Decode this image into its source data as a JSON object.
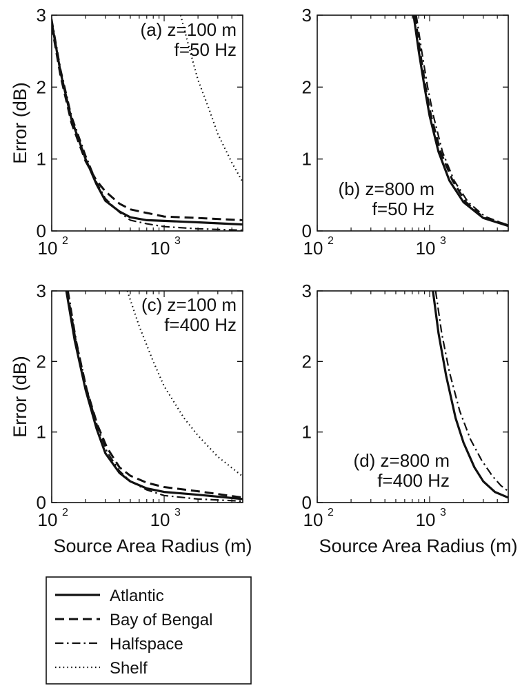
{
  "chart_data": [
    {
      "type": "line",
      "panel_label": "(a)",
      "annotation": [
        "(a) z=100 m",
        "f=50 Hz"
      ],
      "xlabel": "",
      "ylabel": "Error (dB)",
      "xscale": "log",
      "xlim": [
        100,
        5000
      ],
      "ylim": [
        0,
        3
      ],
      "xticks": [
        {
          "value": 100,
          "base": "10",
          "exp": "2"
        },
        {
          "value": 1000,
          "base": "10",
          "exp": "3"
        }
      ],
      "yticks": [
        "0",
        "1",
        "2",
        "3"
      ],
      "series": [
        {
          "name": "Atlantic",
          "style": "solid",
          "points": [
            [
              100,
              2.9
            ],
            [
              120,
              2.2
            ],
            [
              150,
              1.55
            ],
            [
              200,
              1.0
            ],
            [
              250,
              0.65
            ],
            [
              300,
              0.42
            ],
            [
              400,
              0.27
            ],
            [
              500,
              0.19
            ],
            [
              700,
              0.15
            ],
            [
              1000,
              0.14
            ],
            [
              2000,
              0.12
            ],
            [
              5000,
              0.09
            ]
          ]
        },
        {
          "name": "Bay of Bengal",
          "style": "dashed",
          "points": [
            [
              100,
              2.85
            ],
            [
              120,
              2.15
            ],
            [
              150,
              1.5
            ],
            [
              200,
              0.97
            ],
            [
              250,
              0.7
            ],
            [
              300,
              0.55
            ],
            [
              400,
              0.38
            ],
            [
              500,
              0.3
            ],
            [
              700,
              0.25
            ],
            [
              1000,
              0.2
            ],
            [
              2000,
              0.18
            ],
            [
              5000,
              0.15
            ]
          ]
        },
        {
          "name": "Halfspace",
          "style": "dashdot",
          "points": [
            [
              100,
              2.95
            ],
            [
              120,
              2.25
            ],
            [
              150,
              1.6
            ],
            [
              200,
              1.05
            ],
            [
              250,
              0.68
            ],
            [
              300,
              0.45
            ],
            [
              400,
              0.26
            ],
            [
              500,
              0.15
            ],
            [
              700,
              0.1
            ],
            [
              1000,
              0.06
            ],
            [
              2000,
              0.03
            ],
            [
              5000,
              0.01
            ]
          ]
        },
        {
          "name": "Shelf",
          "style": "dotted",
          "points": [
            [
              1400,
              3.0
            ],
            [
              1700,
              2.5
            ],
            [
              2000,
              2.1
            ],
            [
              2500,
              1.7
            ],
            [
              3000,
              1.35
            ],
            [
              4000,
              0.95
            ],
            [
              5000,
              0.68
            ]
          ]
        }
      ]
    },
    {
      "type": "line",
      "panel_label": "(b)",
      "annotation": [
        "(b) z=800 m",
        "f=50 Hz"
      ],
      "xlabel": "",
      "ylabel": "",
      "xscale": "log",
      "xlim": [
        100,
        5000
      ],
      "ylim": [
        0,
        3
      ],
      "xticks": [
        {
          "value": 100,
          "base": "10",
          "exp": "2"
        },
        {
          "value": 1000,
          "base": "10",
          "exp": "3"
        }
      ],
      "yticks": [
        "0",
        "1",
        "2",
        "3"
      ],
      "series": [
        {
          "name": "Atlantic",
          "style": "solid",
          "points": [
            [
              720,
              3.0
            ],
            [
              800,
              2.5
            ],
            [
              900,
              2.0
            ],
            [
              1000,
              1.6
            ],
            [
              1200,
              1.1
            ],
            [
              1500,
              0.7
            ],
            [
              2000,
              0.4
            ],
            [
              3000,
              0.18
            ],
            [
              5000,
              0.07
            ]
          ]
        },
        {
          "name": "Bay of Bengal",
          "style": "dashed",
          "points": [
            [
              740,
              3.0
            ],
            [
              820,
              2.5
            ],
            [
              920,
              2.0
            ],
            [
              1030,
              1.6
            ],
            [
              1250,
              1.1
            ],
            [
              1600,
              0.7
            ],
            [
              2100,
              0.4
            ],
            [
              3000,
              0.19
            ],
            [
              5000,
              0.08
            ]
          ]
        },
        {
          "name": "Halfspace",
          "style": "dashdot",
          "points": [
            [
              760,
              3.0
            ],
            [
              850,
              2.5
            ],
            [
              960,
              2.0
            ],
            [
              1080,
              1.6
            ],
            [
              1300,
              1.1
            ],
            [
              1650,
              0.7
            ],
            [
              2200,
              0.4
            ],
            [
              3100,
              0.2
            ],
            [
              5000,
              0.08
            ]
          ]
        }
      ]
    },
    {
      "type": "line",
      "panel_label": "(c)",
      "annotation": [
        "(c) z=100 m",
        "f=400 Hz"
      ],
      "xlabel": "Source Area Radius (m)",
      "ylabel": "Error (dB)",
      "xscale": "log",
      "xlim": [
        100,
        5000
      ],
      "ylim": [
        0,
        3
      ],
      "xticks": [
        {
          "value": 100,
          "base": "10",
          "exp": "2"
        },
        {
          "value": 1000,
          "base": "10",
          "exp": "3"
        }
      ],
      "yticks": [
        "0",
        "1",
        "2",
        "3"
      ],
      "series": [
        {
          "name": "Atlantic",
          "style": "solid",
          "points": [
            [
              135,
              3.0
            ],
            [
              160,
              2.3
            ],
            [
              200,
              1.6
            ],
            [
              250,
              1.05
            ],
            [
              300,
              0.7
            ],
            [
              400,
              0.42
            ],
            [
              500,
              0.3
            ],
            [
              700,
              0.2
            ],
            [
              1000,
              0.15
            ],
            [
              2000,
              0.11
            ],
            [
              5000,
              0.05
            ]
          ]
        },
        {
          "name": "Bay of Bengal",
          "style": "dashed",
          "points": [
            [
              137,
              3.0
            ],
            [
              163,
              2.3
            ],
            [
              205,
              1.6
            ],
            [
              255,
              1.1
            ],
            [
              310,
              0.78
            ],
            [
              400,
              0.5
            ],
            [
              500,
              0.38
            ],
            [
              700,
              0.28
            ],
            [
              1000,
              0.22
            ],
            [
              2000,
              0.16
            ],
            [
              5000,
              0.07
            ]
          ]
        },
        {
          "name": "Halfspace",
          "style": "dashdot",
          "points": [
            [
              140,
              3.0
            ],
            [
              165,
              2.3
            ],
            [
              205,
              1.6
            ],
            [
              255,
              1.08
            ],
            [
              310,
              0.72
            ],
            [
              400,
              0.45
            ],
            [
              500,
              0.3
            ],
            [
              700,
              0.18
            ],
            [
              1000,
              0.1
            ],
            [
              2000,
              0.05
            ],
            [
              5000,
              0.02
            ]
          ]
        },
        {
          "name": "Shelf",
          "style": "dotted",
          "points": [
            [
              470,
              3.0
            ],
            [
              600,
              2.5
            ],
            [
              800,
              2.0
            ],
            [
              1000,
              1.65
            ],
            [
              1500,
              1.2
            ],
            [
              2000,
              0.95
            ],
            [
              3000,
              0.65
            ],
            [
              5000,
              0.37
            ]
          ]
        }
      ]
    },
    {
      "type": "line",
      "panel_label": "(d)",
      "annotation": [
        "(d) z=800 m",
        "f=400 Hz"
      ],
      "xlabel": "Source Area Radius (m)",
      "ylabel": "",
      "xscale": "log",
      "xlim": [
        100,
        5000
      ],
      "ylim": [
        0,
        3
      ],
      "xticks": [
        {
          "value": 100,
          "base": "10",
          "exp": "2"
        },
        {
          "value": 1000,
          "base": "10",
          "exp": "3"
        }
      ],
      "yticks": [
        "0",
        "1",
        "2",
        "3"
      ],
      "series": [
        {
          "name": "Atlantic",
          "style": "solid",
          "points": [
            [
              1070,
              3.0
            ],
            [
              1200,
              2.4
            ],
            [
              1400,
              1.8
            ],
            [
              1700,
              1.2
            ],
            [
              2000,
              0.85
            ],
            [
              2500,
              0.5
            ],
            [
              3000,
              0.3
            ],
            [
              3800,
              0.15
            ],
            [
              5000,
              0.07
            ]
          ]
        },
        {
          "name": "Halfspace",
          "style": "dashdot",
          "points": [
            [
              1130,
              3.0
            ],
            [
              1280,
              2.4
            ],
            [
              1500,
              1.85
            ],
            [
              1850,
              1.3
            ],
            [
              2300,
              0.9
            ],
            [
              2900,
              0.6
            ],
            [
              3600,
              0.38
            ],
            [
              4300,
              0.24
            ],
            [
              5000,
              0.16
            ]
          ]
        }
      ]
    }
  ],
  "legend": {
    "placement": "bottom-left",
    "entries": [
      {
        "label": "Atlantic",
        "style": "solid"
      },
      {
        "label": "Bay of Bengal",
        "style": "dashed"
      },
      {
        "label": "Halfspace",
        "style": "dashdot"
      },
      {
        "label": "Shelf",
        "style": "dotted"
      }
    ]
  }
}
